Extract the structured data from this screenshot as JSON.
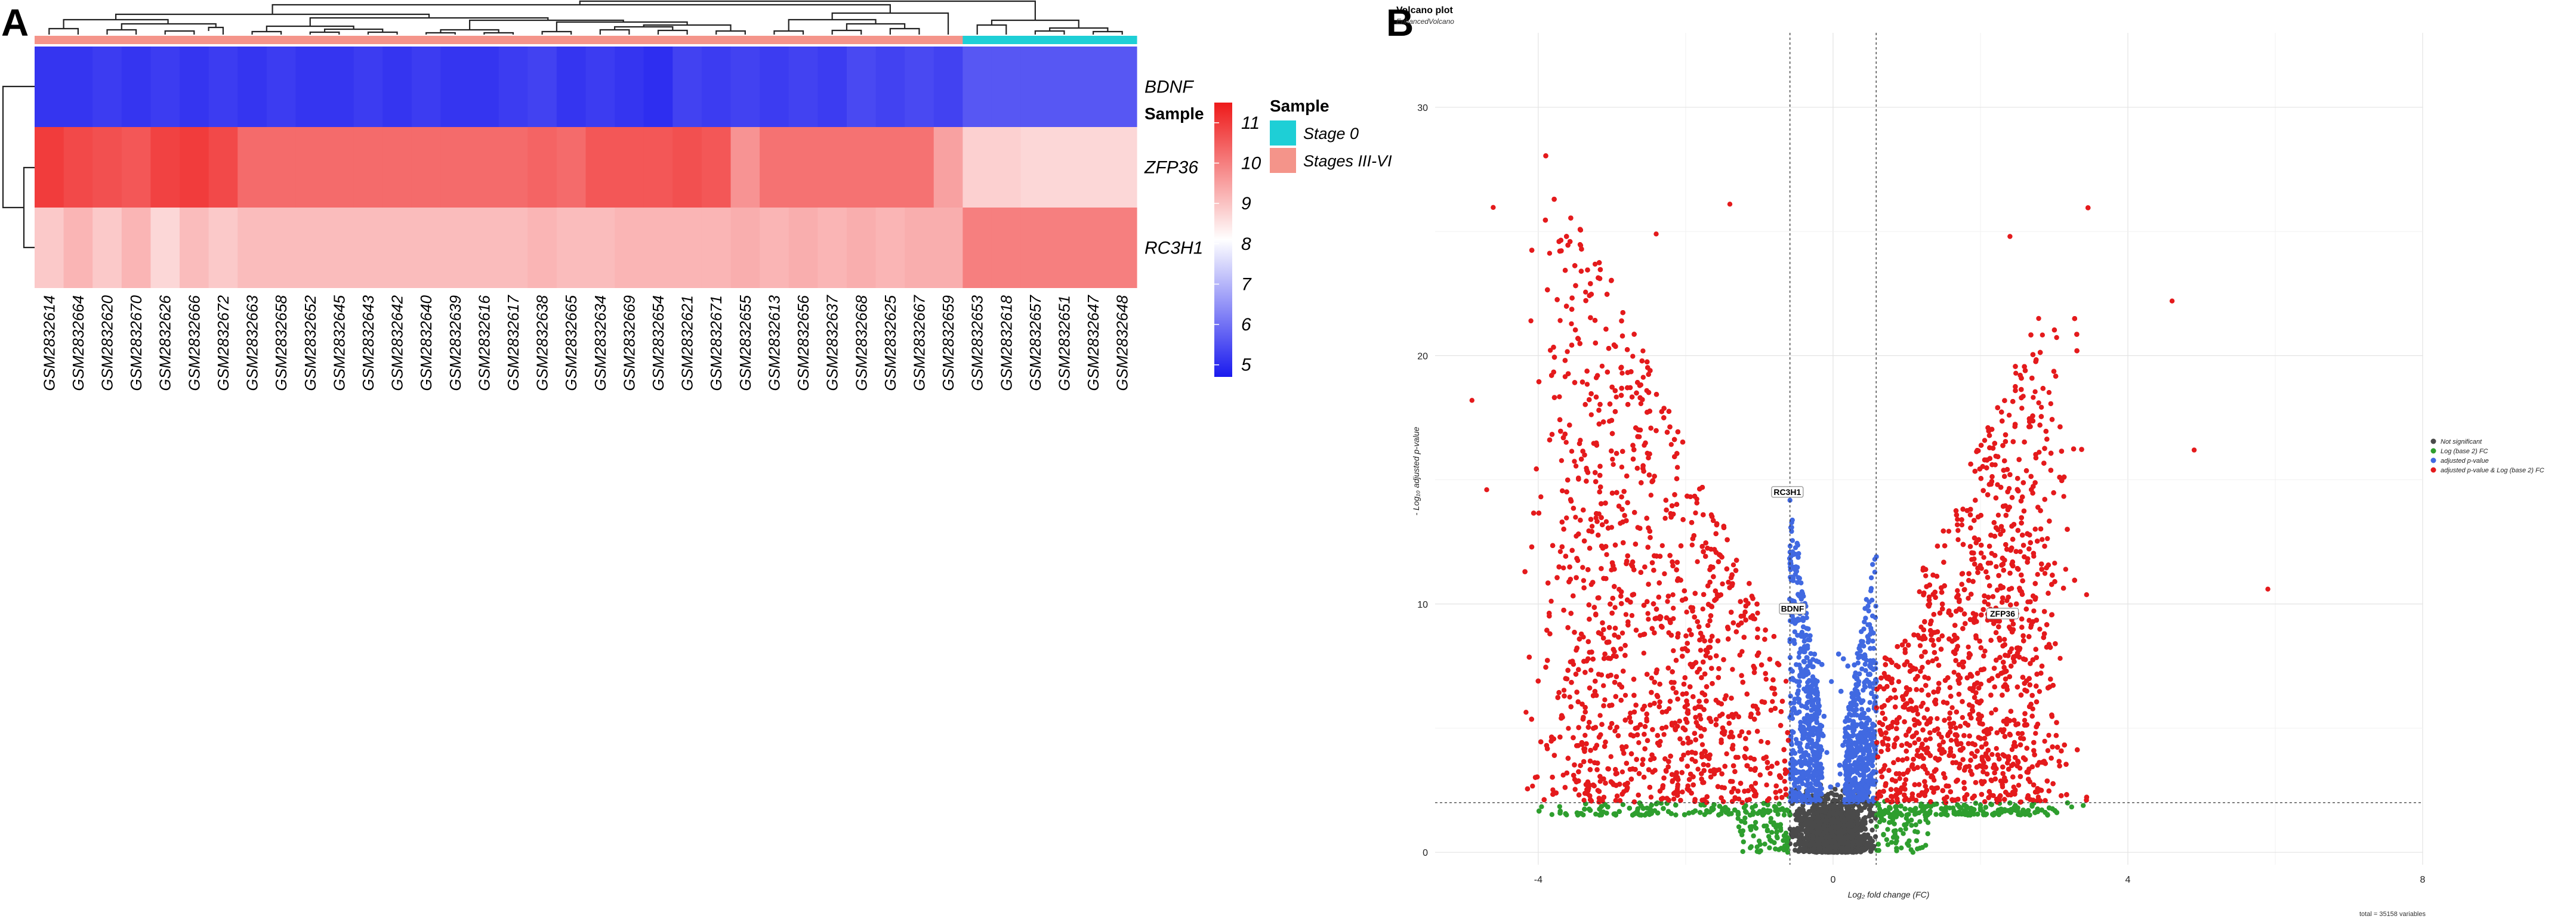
{
  "panels": {
    "a": "A",
    "b": "B"
  },
  "colors": {
    "stage0": "#1ecfd6",
    "stagesIII": "#f4948a",
    "low": "#1a1aee",
    "mid": "#ffffff",
    "high": "#ee1a1a",
    "ns": "#4a4a4a",
    "fc": "#2e9e2e",
    "p": "#4169e1",
    "both": "#e41a1c"
  },
  "chart_data": [
    {
      "type": "heatmap",
      "title": "",
      "annotation_label": "Sample",
      "legend_title": "Sample",
      "groups": [
        "Stage 0",
        "Stages III-VI"
      ],
      "samples": [
        "GSM2832614",
        "GSM2832664",
        "GSM2832620",
        "GSM2832670",
        "GSM2832626",
        "GSM2832666",
        "GSM2832672",
        "GSM2832663",
        "GSM2832658",
        "GSM2832652",
        "GSM2832645",
        "GSM2832643",
        "GSM2832642",
        "GSM2832640",
        "GSM2832639",
        "GSM2832616",
        "GSM2832617",
        "GSM2832638",
        "GSM2832665",
        "GSM2832634",
        "GSM2832669",
        "GSM2832654",
        "GSM2832621",
        "GSM2832671",
        "GSM2832655",
        "GSM2832613",
        "GSM2832656",
        "GSM2832637",
        "GSM2832668",
        "GSM2832625",
        "GSM2832667",
        "GSM2832659",
        "GSM2832653",
        "GSM2832618",
        "GSM2832657",
        "GSM2832651",
        "GSM2832647",
        "GSM2832648"
      ],
      "sample_group": [
        "Stages III-VI",
        "Stages III-VI",
        "Stages III-VI",
        "Stages III-VI",
        "Stages III-VI",
        "Stages III-VI",
        "Stages III-VI",
        "Stages III-VI",
        "Stages III-VI",
        "Stages III-VI",
        "Stages III-VI",
        "Stages III-VI",
        "Stages III-VI",
        "Stages III-VI",
        "Stages III-VI",
        "Stages III-VI",
        "Stages III-VI",
        "Stages III-VI",
        "Stages III-VI",
        "Stages III-VI",
        "Stages III-VI",
        "Stages III-VI",
        "Stages III-VI",
        "Stages III-VI",
        "Stages III-VI",
        "Stages III-VI",
        "Stages III-VI",
        "Stages III-VI",
        "Stages III-VI",
        "Stages III-VI",
        "Stages III-VI",
        "Stages III-VI",
        "Stage 0",
        "Stage 0",
        "Stage 0",
        "Stage 0",
        "Stage 0",
        "Stage 0"
      ],
      "genes": [
        "BDNF",
        "ZFP36",
        "RC3H1"
      ],
      "values": [
        [
          5.1,
          5.1,
          5.2,
          5.1,
          5.2,
          5.1,
          5.2,
          5.1,
          5.2,
          5.1,
          5.1,
          5.2,
          5.1,
          5.2,
          5.1,
          5.1,
          5.2,
          5.3,
          5.1,
          5.2,
          5.1,
          5.0,
          5.3,
          5.2,
          5.3,
          5.2,
          5.3,
          5.2,
          5.4,
          5.3,
          5.4,
          5.3,
          5.6,
          5.6,
          5.6,
          5.6,
          5.6,
          5.6
        ],
        [
          11.0,
          10.8,
          10.7,
          10.6,
          10.9,
          11.0,
          10.8,
          10.3,
          10.3,
          10.3,
          10.3,
          10.3,
          10.3,
          10.3,
          10.3,
          10.3,
          10.3,
          10.4,
          10.3,
          10.6,
          10.6,
          10.6,
          10.7,
          10.6,
          9.7,
          10.2,
          10.2,
          10.2,
          10.2,
          10.2,
          10.2,
          9.5,
          8.8,
          8.8,
          8.7,
          8.7,
          8.7,
          8.7
        ],
        [
          8.9,
          9.2,
          8.9,
          9.2,
          8.7,
          9.1,
          8.9,
          9.1,
          9.1,
          9.1,
          9.1,
          9.1,
          9.1,
          9.1,
          9.1,
          9.1,
          9.1,
          9.2,
          9.1,
          9.1,
          9.2,
          9.2,
          9.2,
          9.2,
          9.3,
          9.2,
          9.3,
          9.2,
          9.3,
          9.2,
          9.3,
          9.3,
          10.0,
          10.0,
          10.0,
          10.0,
          10.0,
          10.0
        ]
      ],
      "color_scale": {
        "min": 4.7,
        "max": 11.5,
        "ticks": [
          11,
          10,
          9,
          8,
          7,
          6,
          5
        ]
      }
    },
    {
      "type": "scatter",
      "title": "Volcano plot",
      "subtitle": "EnhancedVolcano",
      "xlabel": "Log₂ fold change (FC)",
      "ylabel": "- Log₁₀ adjusted p-value",
      "xlim": [
        -5.4,
        8.0
      ],
      "ylim": [
        -0.5,
        33.0
      ],
      "x_ticks": [
        -4,
        0,
        4,
        8
      ],
      "y_ticks": [
        0,
        10,
        20,
        30
      ],
      "fc_cutoff": 0.585,
      "p_cutoff_y": 2.0,
      "legend": [
        "Not significant",
        "Log (base 2) FC",
        "adjusted p-value",
        "adjusted p-value & Log (base 2) FC"
      ],
      "caption": "total = 35158 variables",
      "n_points": 35158,
      "labeled_genes": [
        {
          "name": "RC3H1",
          "x": -0.62,
          "y": 14.2
        },
        {
          "name": "BDNF",
          "x": -0.55,
          "y": 9.5
        },
        {
          "name": "ZFP36",
          "x": 2.3,
          "y": 9.3
        }
      ],
      "highlight_points": [
        {
          "x": 5.9,
          "y": 10.6
        },
        {
          "x": 4.6,
          "y": 22.2
        },
        {
          "x": -4.1,
          "y": 21.4
        },
        {
          "x": -2.4,
          "y": 24.9
        },
        {
          "x": -1.4,
          "y": 26.1
        },
        {
          "x": 2.4,
          "y": 24.8
        },
        {
          "x": -4.9,
          "y": 18.2
        },
        {
          "x": -4.7,
          "y": 14.6
        },
        {
          "x": 4.9,
          "y": 16.2
        },
        {
          "x": 2.0,
          "y": 1.9
        }
      ]
    }
  ]
}
